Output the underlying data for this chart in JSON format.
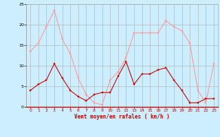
{
  "x": [
    0,
    1,
    2,
    3,
    4,
    5,
    6,
    7,
    8,
    9,
    10,
    11,
    12,
    13,
    14,
    15,
    16,
    17,
    18,
    19,
    20,
    21,
    22,
    23
  ],
  "vent_moyen": [
    4,
    5.5,
    6.5,
    10.5,
    7,
    4,
    2.5,
    1.5,
    3,
    3.5,
    3.5,
    7.5,
    11,
    5.5,
    8,
    8,
    9,
    9.5,
    6.5,
    4,
    1,
    1,
    2,
    2
  ],
  "en_rafales": [
    13.5,
    15.5,
    19.5,
    23.5,
    16.5,
    13,
    7,
    3,
    1,
    0.5,
    6.5,
    8.5,
    12,
    18,
    18,
    18,
    18,
    21,
    19.5,
    18.5,
    15.5,
    4,
    1,
    10.5
  ],
  "color_moyen": "#cc0000",
  "color_rafales": "#ff9999",
  "bg_color": "#cceeff",
  "grid_color": "#aaaaaa",
  "xlabel": "Vent moyen/en rafales ( km/h )",
  "xlabel_color": "#cc0000",
  "ylim": [
    0,
    25
  ],
  "xlim": [
    -0.5,
    23.5
  ],
  "yticks": [
    0,
    5,
    10,
    15,
    20,
    25
  ],
  "xticks": [
    0,
    1,
    2,
    3,
    4,
    5,
    6,
    7,
    8,
    9,
    10,
    11,
    12,
    13,
    14,
    15,
    16,
    17,
    18,
    19,
    20,
    21,
    22,
    23
  ]
}
